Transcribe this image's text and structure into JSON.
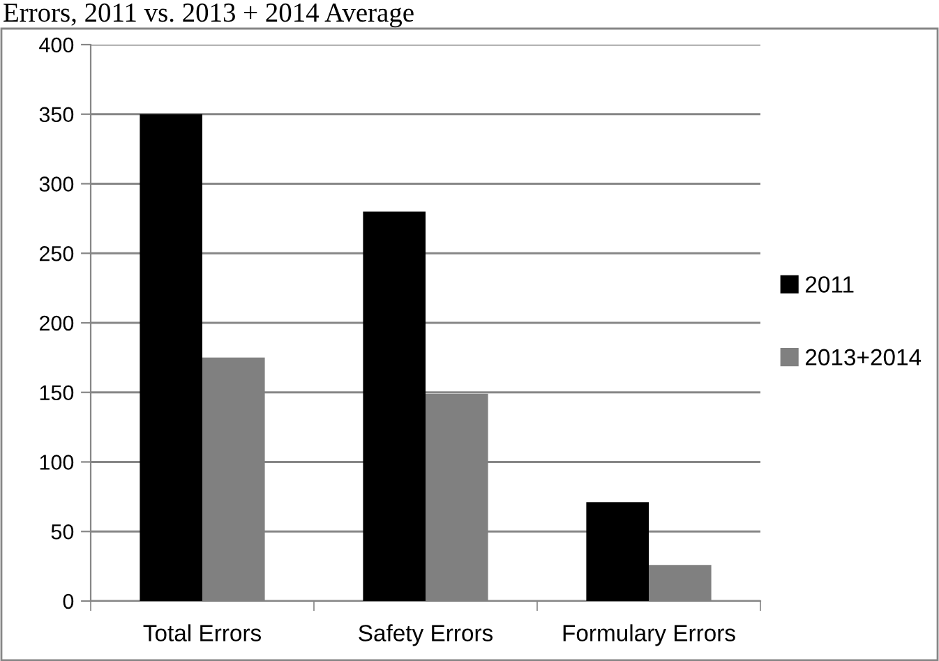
{
  "chart_data": {
    "type": "bar",
    "title": "Errors, 2011 vs. 2013 + 2014 Average",
    "categories": [
      "Total Errors",
      "Safety Errors",
      "Formulary Errors"
    ],
    "series": [
      {
        "name": "2011",
        "color": "#000000",
        "values": [
          350,
          280,
          71
        ]
      },
      {
        "name": "2013+2014",
        "color": "#808080",
        "values": [
          175,
          149,
          26
        ]
      }
    ],
    "ylim": [
      0,
      400
    ],
    "yticks": [
      0,
      50,
      100,
      150,
      200,
      250,
      300,
      350,
      400
    ],
    "grid": "y",
    "legend": "right"
  }
}
